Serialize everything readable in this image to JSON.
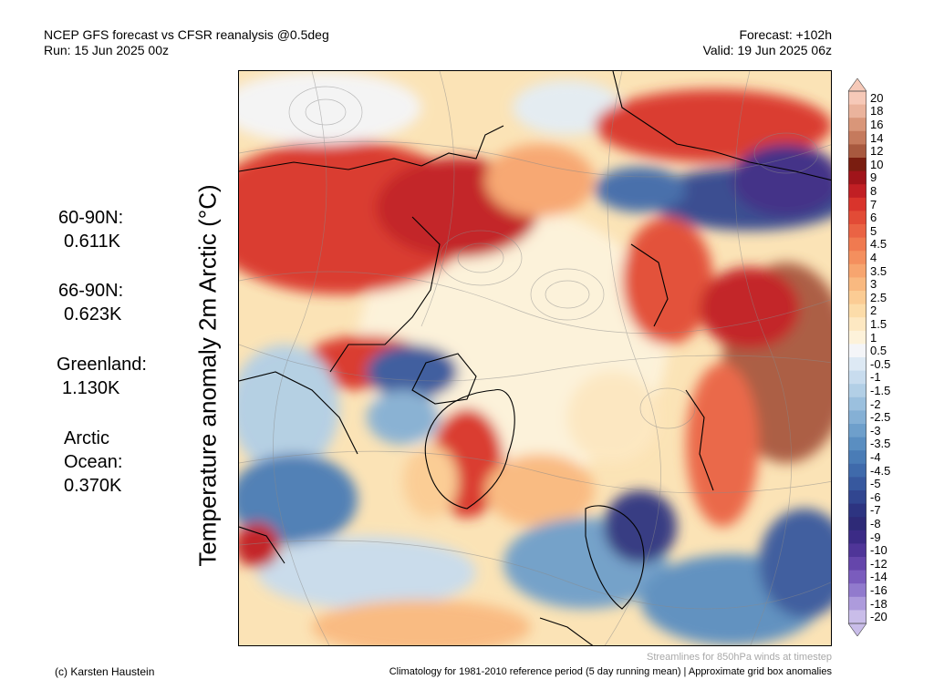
{
  "header": {
    "left_line1": "NCEP GFS forecast vs CFSR reanalysis @0.5deg",
    "left_line2": "Run: 15 Jun 2025 00z",
    "right_line1": "Forecast: +102h",
    "right_line2": "Valid: 19 Jun 2025 06z"
  },
  "y_axis_label": "Temperature anomaly 2m Arctic (°C)",
  "stats": [
    {
      "label": "60-90N:",
      "value": "0.611K"
    },
    {
      "label": "66-90N:",
      "value": "0.623K"
    },
    {
      "label": "Greenland:",
      "value": "1.130K"
    },
    {
      "label_lines": [
        "Arctic",
        "Ocean:"
      ],
      "value": "0.370K"
    }
  ],
  "colorbar": {
    "labels": [
      "20",
      "18",
      "16",
      "14",
      "12",
      "10",
      "9",
      "8",
      "7",
      "6",
      "5",
      "4.5",
      "4",
      "3.5",
      "3",
      "2.5",
      "2",
      "1.5",
      "1",
      "0.5",
      "-0.5",
      "-1",
      "-1.5",
      "-2",
      "-2.5",
      "-3",
      "-3.5",
      "-4",
      "-4.5",
      "-5",
      "-6",
      "-7",
      "-8",
      "-9",
      "-10",
      "-12",
      "-14",
      "-16",
      "-18",
      "-20"
    ],
    "colors": [
      "#f6c9b8",
      "#eab39c",
      "#d99679",
      "#c57a5d",
      "#a8593f",
      "#7a1d10",
      "#a0141a",
      "#c11f24",
      "#d9342c",
      "#e24b36",
      "#ea6344",
      "#f07a50",
      "#f48f5e",
      "#f7a56f",
      "#f9b980",
      "#fbcc94",
      "#fcdca9",
      "#fde8c2",
      "#fdf2da",
      "#f4f5f8",
      "#dde9f4",
      "#c8dcee",
      "#b2cfe6",
      "#9bc0de",
      "#85b0d5",
      "#6e9fcb",
      "#5a8ec1",
      "#4a7cb6",
      "#3f6aab",
      "#37589e",
      "#314690",
      "#2d3481",
      "#2e2a77",
      "#3b2b86",
      "#4f3598",
      "#6546ab",
      "#7a5cbd",
      "#917acd",
      "#ad9bdc",
      "#c9bde9"
    ]
  },
  "footer": {
    "streamline_note": "Streamlines for 850hPa winds at timestep",
    "credit": "(c) Karsten Haustein",
    "climatology": "Climatology for 1981-2010 reference period (5 day running mean) | Approximate grid box anomalies"
  }
}
